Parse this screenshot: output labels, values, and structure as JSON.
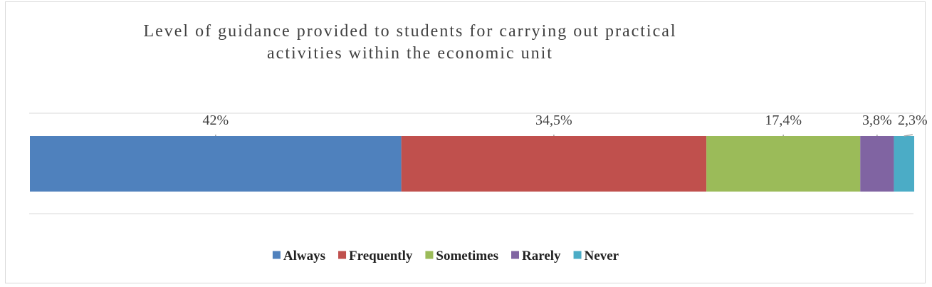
{
  "chart_data": {
    "type": "bar",
    "orientation": "horizontal-stacked-100",
    "title": "Level of guidance provided to students for carrying out practical activities within the economic unit",
    "title_lines": [
      "Level of guidance provided to students for carrying out practical",
      "activities within the economic unit"
    ],
    "series": [
      {
        "name": "Always",
        "value": 42,
        "label": "42%",
        "color": "#4F81BD"
      },
      {
        "name": "Frequently",
        "value": 34.5,
        "label": "34,5%",
        "color": "#C0504D"
      },
      {
        "name": "Sometimes",
        "value": 17.4,
        "label": "17,4%",
        "color": "#9BBB59"
      },
      {
        "name": "Rarely",
        "value": 3.8,
        "label": "3,8%",
        "color": "#8064A2"
      },
      {
        "name": "Never",
        "value": 2.3,
        "label": "2,3%",
        "color": "#4BACC6"
      }
    ],
    "xlim": [
      0,
      100
    ],
    "grid": true,
    "legend_position": "bottom"
  }
}
